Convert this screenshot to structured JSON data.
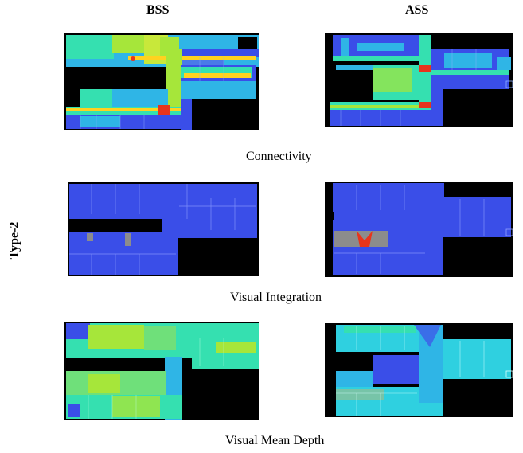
{
  "header": {
    "col_left": "BSS",
    "col_right": "ASS"
  },
  "row_label": "Type-2",
  "captions": {
    "connectivity": "Connectivity",
    "visual_integration": "Visual Integration",
    "visual_mean_depth": "Visual Mean Depth"
  },
  "panels": [
    {
      "id": "connectivity-bss",
      "measure": "Connectivity",
      "scenario": "BSS"
    },
    {
      "id": "connectivity-ass",
      "measure": "Connectivity",
      "scenario": "ASS"
    },
    {
      "id": "integration-bss",
      "measure": "Visual Integration",
      "scenario": "BSS"
    },
    {
      "id": "integration-ass",
      "measure": "Visual Integration",
      "scenario": "ASS"
    },
    {
      "id": "meandepth-bss",
      "measure": "Visual Mean Depth",
      "scenario": "BSS"
    },
    {
      "id": "meandepth-ass",
      "measure": "Visual Mean Depth",
      "scenario": "ASS"
    }
  ],
  "colors": {
    "background": "#000000",
    "low": "#3a4ee8",
    "mid_low": "#2fb5e6",
    "mid": "#35e0b0",
    "mid_high": "#a6e63a",
    "high": "#ffd21f",
    "peak": "#e8341c",
    "grey": "#8c8c8c"
  }
}
